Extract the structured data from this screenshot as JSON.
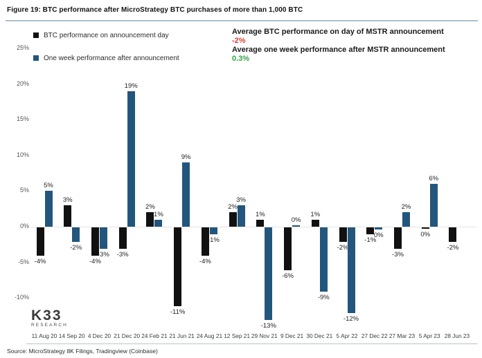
{
  "figure": {
    "title": "Figure 19: BTC performance after MicroStrategy BTC purchases of more than 1,000 BTC",
    "source": "Source: MicroStrategy 8K Filings, Tradingview (Coinbase)",
    "logo_line1": "K33",
    "logo_line2": "RESEARCH"
  },
  "legend": [
    {
      "label": "BTC performance on announcement day",
      "color": "#111111"
    },
    {
      "label": "One week performance after announcement",
      "color": "#23567d"
    }
  ],
  "annotations": [
    {
      "text": "Average BTC performance on day of MSTR announcement",
      "value": "-2%",
      "value_color": "#e23b32"
    },
    {
      "text": "Average one week performance after MSTR announcement",
      "value": "0.3%",
      "value_color": "#2fa244"
    }
  ],
  "chart_data": {
    "type": "bar",
    "title": "BTC performance after MicroStrategy BTC purchases of more than 1,000 BTC",
    "categories": [
      "11 Aug 20",
      "14 Sep 20",
      "4 Dec 20",
      "21 Dec 20",
      "24 Feb 21",
      "21 Jun 21",
      "24 Aug 21",
      "12 Sep 21",
      "29 Nov 21",
      "9 Dec 21",
      "30 Dec 21",
      "5 Apr 22",
      "27 Dec 22",
      "27 Mar 23",
      "5 Apr 23",
      "28 Jun 23"
    ],
    "series": [
      {
        "name": "BTC performance on announcement day",
        "color": "#111111",
        "values": [
          -4,
          3,
          -4,
          -3,
          2,
          -11,
          -4,
          2,
          1,
          -6,
          1,
          -2,
          -1,
          -3,
          -0.1,
          -2
        ],
        "labels": [
          "-4%",
          "3%",
          "-4%",
          "-3%",
          "2%",
          "-11%",
          "-4%",
          "2%",
          "1%",
          "-6%",
          "1%",
          "-2%",
          "-1%",
          "-3%",
          "0%",
          "-2%"
        ]
      },
      {
        "name": "One week performance after announcement",
        "color": "#23567d",
        "values": [
          5,
          -2,
          -3,
          19,
          1,
          9,
          -1,
          3,
          -13,
          0.1,
          -9,
          -12,
          -0.3,
          2,
          6,
          null
        ],
        "labels": [
          "5%",
          "-2%",
          "-3%",
          "19%",
          "1%",
          "9%",
          "-1%",
          "3%",
          "-13%",
          "0%",
          "-9%",
          "-12%",
          "0%",
          "2%",
          "6%",
          ""
        ]
      }
    ],
    "xlabel": "",
    "ylabel": "",
    "ylim": [
      -15,
      26
    ],
    "yticks": [
      25,
      20,
      15,
      10,
      5,
      0,
      -5,
      -10
    ],
    "ytick_suffix": "%",
    "grid": false,
    "legend_position": "top-left",
    "averages": {
      "announcement_day": "-2%",
      "one_week_after": "0.3%"
    }
  }
}
